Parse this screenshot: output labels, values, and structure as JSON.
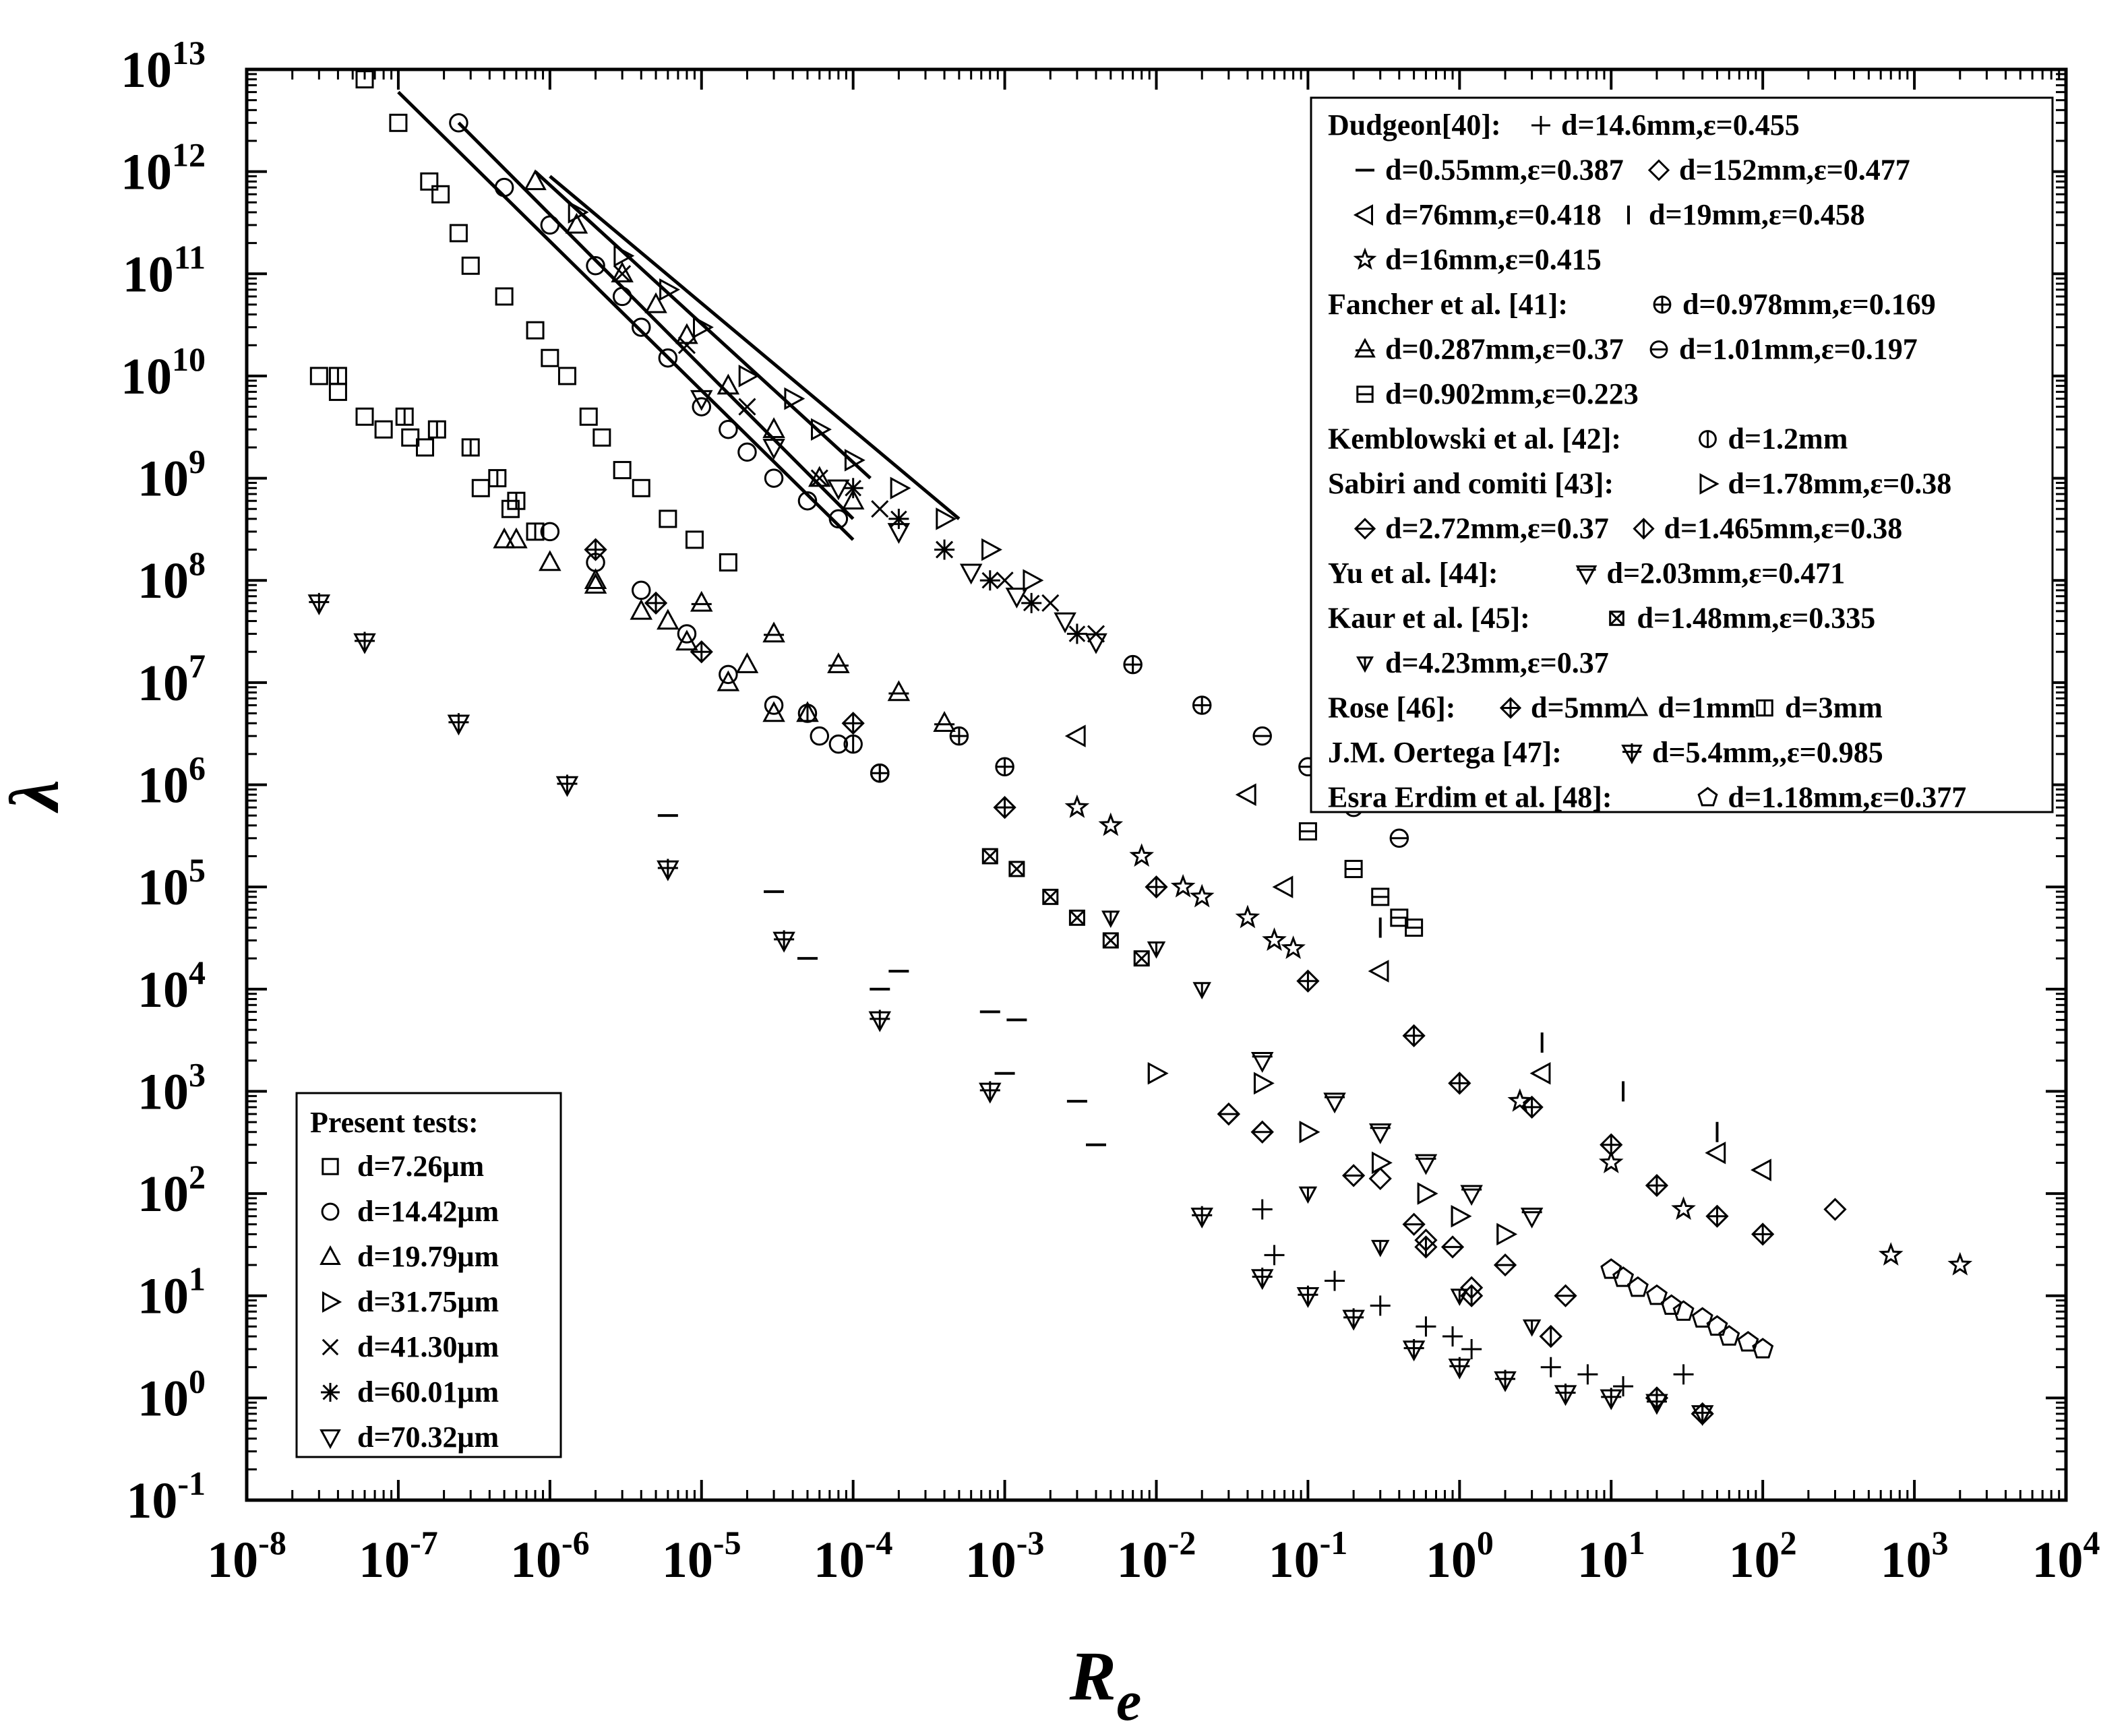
{
  "chart_data": {
    "type": "scatter",
    "title": "",
    "xlabel_base": "R",
    "xlabel_sub": "e",
    "ylabel": "λ",
    "xscale": "log",
    "yscale": "log",
    "xlim_exp": [
      -8,
      4
    ],
    "ylim_exp": [
      -1,
      13
    ],
    "xticks_exp": [
      -8,
      -7,
      -6,
      -5,
      -4,
      -3,
      -2,
      -1,
      0,
      1,
      2,
      3,
      4
    ],
    "yticks_exp": [
      -1,
      0,
      1,
      2,
      3,
      4,
      5,
      6,
      7,
      8,
      9,
      10,
      11,
      12,
      13
    ],
    "tick_base": "10",
    "fit_lines": [
      {
        "x": [
          1e-07,
          0.0001
        ],
        "y": [
          6000000000000.0,
          250000000.0
        ]
      },
      {
        "x": [
          2.5e-07,
          0.0001
        ],
        "y": [
          3000000000000.0,
          400000000.0
        ]
      },
      {
        "x": [
          8e-07,
          0.00013
        ],
        "y": [
          1000000000000.0,
          1000000000.0
        ]
      },
      {
        "x": [
          1e-06,
          0.0005
        ],
        "y": [
          900000000000.0,
          400000000.0
        ]
      }
    ],
    "series": [
      {
        "name": "d=7.26μm",
        "marker": "square",
        "group": "present",
        "x": [
          6e-08,
          1e-07,
          1.6e-07,
          1.9e-07,
          2.5e-07,
          3e-07,
          5e-07,
          8e-07,
          1e-06,
          1.3e-06,
          1.8e-06,
          2.2e-06,
          3e-06,
          4e-06,
          6e-06,
          9e-06,
          1.5e-05,
          3e-08,
          4e-08,
          6e-08,
          8e-08,
          1.2e-07,
          1.5e-07,
          3.5e-07,
          5.5e-07
        ],
        "y": [
          8000000000000.0,
          3000000000000.0,
          800000000000.0,
          600000000000.0,
          250000000000.0,
          120000000000.0,
          60000000000.0,
          28000000000.0,
          15000000000.0,
          10000000000.0,
          4000000000.0,
          2500000000.0,
          1200000000.0,
          800000000.0,
          400000000.0,
          250000000.0,
          150000000.0,
          10000000000.0,
          7000000000.0,
          4000000000.0,
          3000000000.0,
          2500000000.0,
          2000000000.0,
          800000000.0,
          500000000.0
        ]
      },
      {
        "name": "d=14.42μm",
        "marker": "circle",
        "group": "present",
        "x": [
          2.5e-07,
          5e-07,
          1e-06,
          2e-06,
          3e-06,
          4e-06,
          6e-06,
          1e-05,
          1.5e-05,
          2e-05,
          3e-05,
          5e-05,
          8e-05,
          1e-06,
          2e-06,
          4e-06,
          8e-06,
          1.5e-05,
          3e-05,
          6e-05,
          8e-05,
          0.00015
        ],
        "y": [
          3000000000000.0,
          700000000000.0,
          300000000000.0,
          120000000000.0,
          60000000000.0,
          30000000000.0,
          15000000000.0,
          5000000000.0,
          3000000000.0,
          1800000000.0,
          1000000000.0,
          600000000.0,
          400000000.0,
          300000000.0,
          150000000.0,
          80000000.0,
          30000000.0,
          12000000.0,
          6000000.0,
          3000000.0,
          2500000.0,
          1300000.0
        ]
      },
      {
        "name": "d=19.79μm",
        "marker": "triangle-up",
        "group": "present",
        "x": [
          8e-07,
          1.5e-06,
          3e-06,
          5e-06,
          8e-06,
          1.5e-05,
          3e-05,
          6e-05,
          0.0001,
          5e-07,
          1e-06,
          2e-06,
          4e-06,
          8e-06,
          1.5e-05,
          3e-05
        ],
        "y": [
          800000000000.0,
          300000000000.0,
          100000000000.0,
          50000000000.0,
          25000000000.0,
          8000000000.0,
          3000000000.0,
          1000000000.0,
          600000000.0,
          250000000.0,
          150000000.0,
          90000000.0,
          50000000.0,
          25000000.0,
          10000000.0,
          5000000.0
        ]
      },
      {
        "name": "d=31.75μm",
        "marker": "triangle-right",
        "group": "present",
        "x": [
          1.5e-06,
          3e-06,
          6e-06,
          1e-05,
          2e-05,
          4e-05,
          6e-05,
          0.0001,
          0.0002,
          0.0004,
          0.0008,
          0.0015
        ],
        "y": [
          400000000000.0,
          150000000000.0,
          70000000000.0,
          30000000000.0,
          10000000000.0,
          6000000000.0,
          3000000000.0,
          1500000000.0,
          800000000.0,
          400000000.0,
          200000000.0,
          100000000.0
        ]
      },
      {
        "name": "d=41.30μm",
        "marker": "x",
        "group": "present",
        "x": [
          3e-06,
          8e-06,
          2e-05,
          6e-05,
          0.00015,
          0.0004,
          0.001,
          0.002,
          0.004
        ],
        "y": [
          100000000000.0,
          20000000000.0,
          5000000000.0,
          1000000000.0,
          500000000.0,
          200000000.0,
          100000000.0,
          60000000.0,
          30000000.0
        ]
      },
      {
        "name": "d=60.01μm",
        "marker": "asterisk",
        "group": "present",
        "x": [
          0.0001,
          0.0002,
          0.0004,
          0.0008,
          0.0015,
          0.003
        ],
        "y": [
          800000000.0,
          400000000.0,
          200000000.0,
          100000000.0,
          60000000.0,
          30000000.0
        ]
      },
      {
        "name": "d=70.32μm",
        "marker": "triangle-down",
        "group": "present",
        "x": [
          1e-05,
          3e-05,
          8e-05,
          0.0002,
          0.0006,
          0.0012,
          0.0025,
          0.004
        ],
        "y": [
          6000000000.0,
          2000000000.0,
          800000000.0,
          300000000.0,
          120000000.0,
          70000000.0,
          40000000.0,
          25000000.0
        ]
      },
      {
        "name": "d=14.6mm,ε=0.455",
        "marker": "plus",
        "group": "lit",
        "x": [
          0.05,
          0.06,
          0.15,
          0.3,
          0.6,
          0.9,
          1.2,
          4,
          7,
          12,
          30
        ],
        "y": [
          70,
          25,
          14,
          8,
          5,
          4,
          3,
          2,
          1.7,
          1.3,
          1.7
        ]
      },
      {
        "name": "d=0.55mm,ε=0.387",
        "marker": "dash",
        "group": "lit",
        "x": [
          6e-06,
          3e-05,
          5e-05,
          0.0002,
          0.00015,
          0.0008,
          0.001,
          0.003,
          0.004,
          0.0012
        ],
        "y": [
          500000.0,
          90000.0,
          20000.0,
          15000.0,
          10000.0,
          6000.0,
          1500.0,
          800,
          300,
          5000.0
        ]
      },
      {
        "name": "d=152mm,ε=0.477",
        "marker": "diamond",
        "group": "lit",
        "x": [
          0.03,
          0.05,
          0.3,
          0.6,
          1.2,
          4,
          300
        ],
        "y": [
          600,
          400,
          140,
          35,
          12,
          4,
          70
        ]
      },
      {
        "name": "d=76mm,ε=0.418",
        "marker": "triangle-left",
        "group": "lit",
        "x": [
          0.003,
          0.04,
          0.07,
          0.3,
          3.5,
          50,
          100
        ],
        "y": [
          3000000.0,
          800000.0,
          100000.0,
          15000.0,
          1500.0,
          250,
          170
        ]
      },
      {
        "name": "d=19mm,ε=0.458",
        "marker": "vbar",
        "group": "lit",
        "x": [
          0.3,
          3.5,
          12,
          50
        ],
        "y": [
          40000.0,
          3000.0,
          1000.0,
          400
        ]
      },
      {
        "name": "d=16mm,ε=0.415",
        "marker": "star",
        "group": "lit",
        "x": [
          0.003,
          0.005,
          0.008,
          0.015,
          0.02,
          0.04,
          0.06,
          0.08,
          2.5,
          10,
          30,
          700,
          2000
        ],
        "y": [
          600000.0,
          400000.0,
          200000.0,
          100000.0,
          80000.0,
          50000.0,
          30000.0,
          25000.0,
          800,
          200,
          70,
          25,
          20
        ]
      },
      {
        "name": "d=0.978mm,ε=0.169",
        "marker": "circle-plus",
        "group": "lit",
        "x": [
          0.001,
          0.0005,
          0.00015,
          0.007,
          0.02
        ],
        "y": [
          1500000.0,
          3000000.0,
          1300000.0,
          15000000.0,
          6000000.0
        ]
      },
      {
        "name": "d=0.287mm,ε=0.37",
        "marker": "triangle-bar",
        "group": "lit",
        "x": [
          1e-05,
          3e-05,
          8e-05,
          0.0002,
          0.0004
        ],
        "y": [
          60000000.0,
          30000000.0,
          15000000.0,
          8000000.0,
          4000000.0
        ]
      },
      {
        "name": "d=1.01mm,ε=0.197",
        "marker": "circle-minus",
        "group": "lit",
        "x": [
          0.05,
          0.1,
          0.2,
          0.4
        ],
        "y": [
          3000000.0,
          1500000.0,
          600000.0,
          300000.0
        ]
      },
      {
        "name": "d=0.902mm,ε=0.223",
        "marker": "square-minus",
        "group": "lit",
        "x": [
          0.1,
          0.2,
          0.3,
          0.4,
          0.5
        ],
        "y": [
          350000.0,
          150000.0,
          80000.0,
          50000.0,
          40000.0
        ]
      },
      {
        "name": "d=1.2mm",
        "marker": "circle-vbar",
        "group": "lit",
        "x": [
          5e-05,
          0.0001,
          0.00015
        ],
        "y": [
          5000000.0,
          2500000.0,
          1300000.0
        ]
      },
      {
        "name": "d=1.78mm,ε=0.38",
        "marker": "triangle-right-bar",
        "group": "lit",
        "x": [
          0.01,
          0.05,
          0.1,
          0.3,
          0.6,
          1,
          2
        ],
        "y": [
          1500.0,
          1200.0,
          400,
          200,
          100,
          60,
          40
        ]
      },
      {
        "name": "d=2.72mm,ε=0.37",
        "marker": "diamond-minus",
        "group": "lit",
        "x": [
          0.03,
          0.05,
          0.2,
          0.5,
          0.9,
          2,
          5
        ],
        "y": [
          600,
          400,
          150,
          50,
          30,
          20,
          10
        ]
      },
      {
        "name": "d=1.465mm,ε=0.38",
        "marker": "diamond-vbar",
        "group": "lit",
        "x": [
          0.6,
          1.2,
          4,
          20,
          40
        ],
        "y": [
          30,
          10,
          4,
          1,
          0.7
        ]
      },
      {
        "name": "d=2.03mm,ε=0.471",
        "marker": "triangle-down-bar",
        "group": "lit",
        "x": [
          0.05,
          0.15,
          0.3,
          0.6,
          1.2,
          3
        ],
        "y": [
          2000.0,
          800,
          400,
          200,
          100,
          60
        ]
      },
      {
        "name": "d=1.48mm,ε=0.335",
        "marker": "square-x",
        "group": "lit",
        "x": [
          0.0008,
          0.0012,
          0.002,
          0.003,
          0.005,
          0.008
        ],
        "y": [
          200000.0,
          150000.0,
          80000.0,
          50000.0,
          30000.0,
          20000.0
        ]
      },
      {
        "name": "d=4.23mm,ε=0.37",
        "marker": "triangle-down-small",
        "group": "lit",
        "x": [
          0.005,
          0.01,
          0.02,
          0.1,
          0.3,
          1,
          3
        ],
        "y": [
          50000.0,
          25000.0,
          10000.0,
          100,
          30,
          10,
          5
        ]
      },
      {
        "name": "d=5mm",
        "marker": "diamond-plus",
        "group": "lit",
        "x": [
          2e-06,
          5e-06,
          1e-05,
          0.0001,
          0.001,
          0.01,
          0.1,
          0.5,
          1,
          3,
          10,
          20,
          50,
          100
        ],
        "y": [
          200000000.0,
          60000000.0,
          20000000.0,
          4000000.0,
          600000.0,
          100000.0,
          12000.0,
          3500.0,
          1200.0,
          700,
          300,
          120,
          60,
          40
        ]
      },
      {
        "name": "d=1mm",
        "marker": "triangle-up",
        "group": "lit",
        "x": [
          6e-07,
          2e-06,
          6e-06,
          2e-05,
          5e-05
        ],
        "y": [
          250000000.0,
          100000000.0,
          40000000.0,
          15000000.0,
          5000000.0
        ]
      },
      {
        "name": "d=3mm",
        "marker": "square-vbar",
        "group": "lit",
        "x": [
          4e-08,
          1.1e-07,
          1.8e-07,
          3e-07,
          4.5e-07,
          6e-07,
          8e-07
        ],
        "y": [
          10000000000.0,
          4000000000.0,
          3000000000.0,
          2000000000.0,
          1000000000.0,
          600000000.0,
          300000000.0
        ]
      },
      {
        "name": "d=5.4mm,,ε=0.985",
        "marker": "triangle-down-plus",
        "group": "lit",
        "x": [
          3e-08,
          6e-08,
          2.5e-07,
          1.3e-06,
          6e-06,
          3.5e-05,
          0.00015,
          0.0008,
          0.02,
          0.05,
          0.1,
          0.2,
          0.5,
          1,
          2,
          5,
          10,
          20,
          40
        ],
        "y": [
          60000000.0,
          25000000.0,
          4000000.0,
          1000000.0,
          150000.0,
          30000.0,
          5000.0,
          1000.0,
          60,
          15,
          10,
          6,
          3,
          2,
          1.5,
          1.1,
          1,
          0.9,
          0.7
        ]
      },
      {
        "name": "d=1.18mm,ε=0.377",
        "marker": "pentagon",
        "group": "lit",
        "x": [
          10,
          12,
          15,
          20,
          25,
          30,
          40,
          50,
          60,
          80,
          100
        ],
        "y": [
          18,
          15,
          12,
          10,
          8,
          7,
          6,
          5,
          4,
          3.5,
          3
        ]
      }
    ],
    "legend_present": {
      "title": "Present tests:",
      "entries": [
        {
          "marker": "square",
          "label": "d=7.26μm"
        },
        {
          "marker": "circle",
          "label": "d=14.42μm"
        },
        {
          "marker": "triangle-up",
          "label": "d=19.79μm"
        },
        {
          "marker": "triangle-right",
          "label": "d=31.75μm"
        },
        {
          "marker": "x",
          "label": "d=41.30μm"
        },
        {
          "marker": "asterisk",
          "label": "d=60.01μm"
        },
        {
          "marker": "triangle-down",
          "label": "d=70.32μm"
        }
      ]
    },
    "legend_lit": {
      "rows": [
        [
          {
            "text": "Dudgeon[40]:"
          },
          {
            "marker": "plus",
            "text": "d=14.6mm,ε=0.455"
          }
        ],
        [
          {
            "marker": "dash",
            "text": "d=0.55mm,ε=0.387"
          },
          {
            "marker": "diamond",
            "text": "d=152mm,ε=0.477"
          }
        ],
        [
          {
            "marker": "triangle-left",
            "text": "d=76mm,ε=0.418"
          },
          {
            "marker": "vbar",
            "text": "d=19mm,ε=0.458"
          }
        ],
        [
          {
            "marker": "star",
            "text": "d=16mm,ε=0.415"
          }
        ],
        [
          {
            "text": "Fancher et al. [41]:"
          },
          {
            "marker": "circle-plus",
            "text": "d=0.978mm,ε=0.169"
          }
        ],
        [
          {
            "marker": "triangle-bar",
            "text": "d=0.287mm,ε=0.37"
          },
          {
            "marker": "circle-minus",
            "text": "d=1.01mm,ε=0.197"
          }
        ],
        [
          {
            "marker": "square-minus",
            "text": "d=0.902mm,ε=0.223"
          }
        ],
        [
          {
            "text": "Kemblowski et al. [42]:"
          },
          {
            "marker": "circle-vbar",
            "text": "d=1.2mm"
          }
        ],
        [
          {
            "text": "Sabiri and comiti [43]:"
          },
          {
            "marker": "triangle-right-bar",
            "text": "d=1.78mm,ε=0.38"
          }
        ],
        [
          {
            "marker": "diamond-minus",
            "text": "d=2.72mm,ε=0.37"
          },
          {
            "marker": "diamond-vbar",
            "text": "d=1.465mm,ε=0.38"
          }
        ],
        [
          {
            "text": "Yu et al. [44]:"
          },
          {
            "marker": "triangle-down-bar",
            "text": "d=2.03mm,ε=0.471"
          }
        ],
        [
          {
            "text": "Kaur et al. [45]:"
          },
          {
            "marker": "square-x",
            "text": "d=1.48mm,ε=0.335"
          }
        ],
        [
          {
            "marker": "triangle-down-small",
            "text": "d=4.23mm,ε=0.37"
          }
        ],
        [
          {
            "text": "Rose [46]:"
          },
          {
            "marker": "diamond-plus",
            "text": "d=5mm"
          },
          {
            "marker": "triangle-up",
            "text": "d=1mm"
          },
          {
            "marker": "square-vbar",
            "text": "d=3mm"
          }
        ],
        [
          {
            "text": "J.M. Oertega [47]:"
          },
          {
            "marker": "triangle-down-plus",
            "text": "d=5.4mm,,ε=0.985"
          }
        ],
        [
          {
            "text": "Esra Erdim et al. [48]:"
          },
          {
            "marker": "pentagon",
            "text": "d=1.18mm,ε=0.377"
          }
        ]
      ]
    }
  }
}
